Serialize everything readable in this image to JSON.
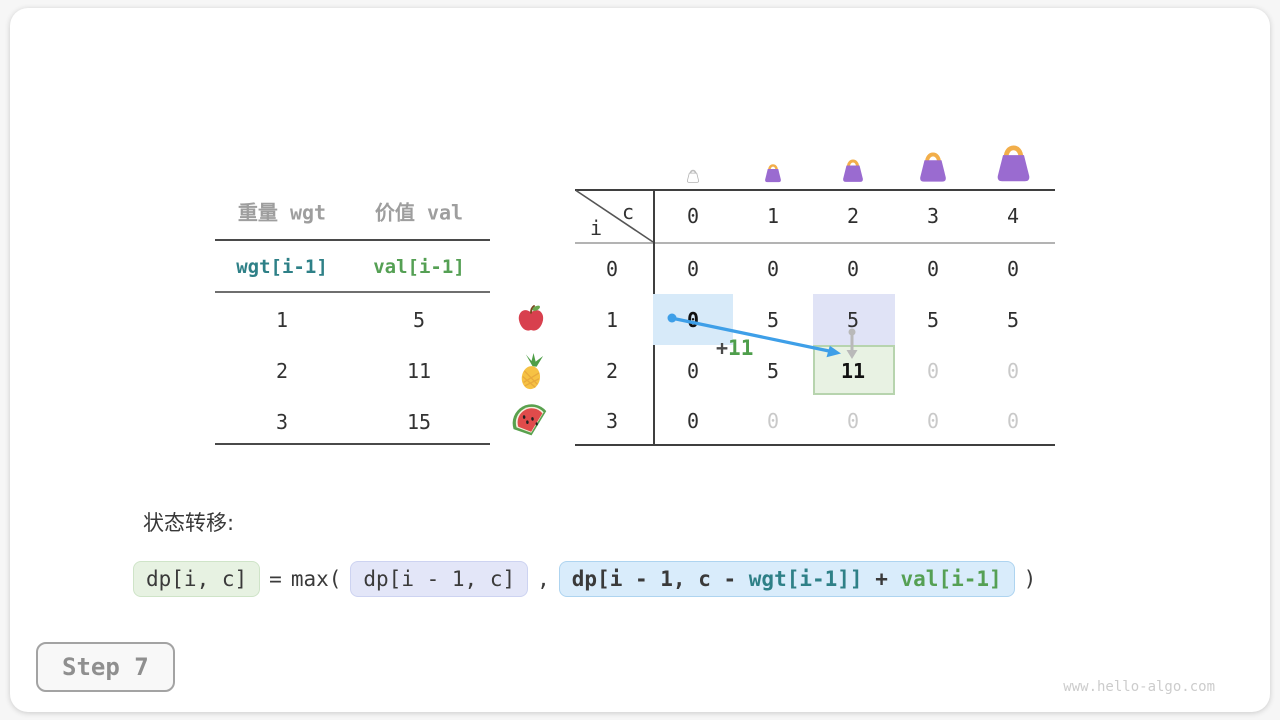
{
  "items_table": {
    "col_headers": [
      "重量 wgt",
      "价值 val"
    ],
    "index_row": {
      "wgt": "wgt[i-1]",
      "val": "val[i-1]"
    },
    "rows": [
      {
        "wgt": "1",
        "val": "5",
        "icon": "apple-icon"
      },
      {
        "wgt": "2",
        "val": "11",
        "icon": "pineapple-icon"
      },
      {
        "wgt": "3",
        "val": "15",
        "icon": "watermelon-icon"
      }
    ]
  },
  "dp_table": {
    "corner": {
      "col_var": "c",
      "row_var": "i"
    },
    "col_headers": [
      "0",
      "1",
      "2",
      "3",
      "4"
    ],
    "row_headers": [
      "0",
      "1",
      "2",
      "3"
    ],
    "cells": [
      [
        "0",
        "0",
        "0",
        "0",
        "0"
      ],
      [
        "0",
        "5",
        "5",
        "5",
        "5"
      ],
      [
        "0",
        "5",
        "11",
        "0",
        "0"
      ],
      [
        "0",
        "0",
        "0",
        "0",
        "0"
      ]
    ],
    "muted_cells": [
      [
        2,
        3
      ],
      [
        2,
        4
      ],
      [
        3,
        1
      ],
      [
        3,
        2
      ],
      [
        3,
        3
      ],
      [
        3,
        4
      ]
    ],
    "highlights": [
      {
        "row": 1,
        "col": 0,
        "style": "blue",
        "bold": true
      },
      {
        "row": 1,
        "col": 2,
        "style": "purple",
        "bold": false
      },
      {
        "row": 2,
        "col": 2,
        "style": "green",
        "bold": true
      }
    ],
    "annotation": {
      "plus": "+",
      "value": "11"
    },
    "capacity_icons": [
      "bag-outline-icon",
      "bag-small-icon",
      "bag-medium-icon",
      "bag-large-icon",
      "bag-xlarge-icon"
    ]
  },
  "formula": {
    "label": "状态转移:",
    "lhs": "dp[i, c]",
    "equals": "=",
    "max_open": "max(",
    "arg1": "dp[i - 1, c]",
    "comma": ",",
    "arg2_prefix": "dp[i - 1, c - ",
    "arg2_wgt": "wgt[i-1]]",
    "arg2_plus": " + ",
    "arg2_val": "val[i-1]",
    "close": ")"
  },
  "footer": {
    "step_label": "Step 7",
    "watermark": "www.hello-algo.com"
  },
  "colors": {
    "teal": "#2e8087",
    "green": "#55a054",
    "arrow_blue": "#3e9fe8",
    "arrow_gray": "#b9b9b9",
    "bag_purple": "#9a6bd0",
    "bag_handle": "#f2ae4a",
    "hl_blue": "#d7eaf9",
    "hl_purple": "#e0e3f6",
    "hl_green": "#e8f2e3",
    "hl_green_border": "#b7d4ae",
    "muted_text": "#c9c9c9",
    "header_gray": "#9e9e9e"
  }
}
